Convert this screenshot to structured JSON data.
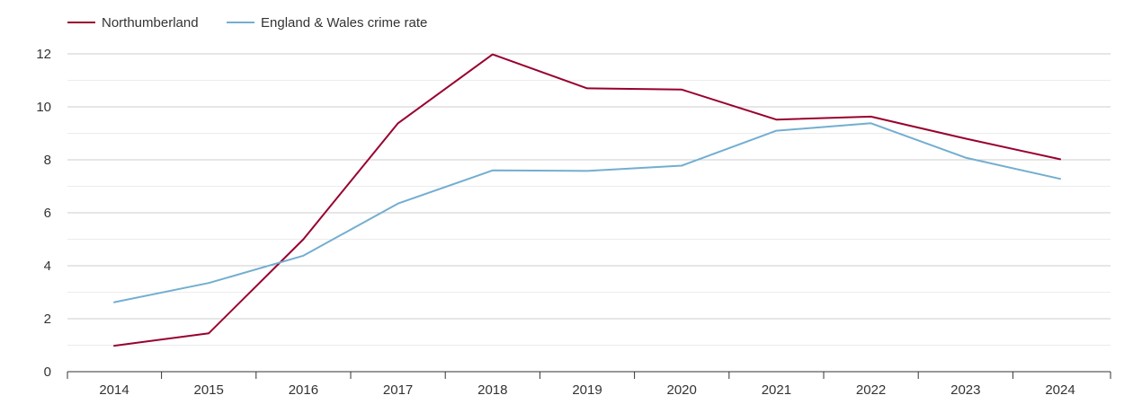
{
  "chart_data": {
    "type": "line",
    "title": "",
    "xlabel": "",
    "ylabel": "",
    "x": [
      "2014",
      "2015",
      "2016",
      "2017",
      "2018",
      "2019",
      "2020",
      "2021",
      "2022",
      "2023",
      "2024"
    ],
    "ylim": [
      0,
      12
    ],
    "y_ticks": [
      0,
      2,
      4,
      6,
      8,
      10,
      12
    ],
    "grid": true,
    "legend_position": "top-left",
    "series": [
      {
        "name": "Northumberland",
        "color": "#99002e",
        "values": [
          0.98,
          1.45,
          5.0,
          9.38,
          11.98,
          10.7,
          10.65,
          9.52,
          9.63,
          8.8,
          8.02
        ]
      },
      {
        "name": "England & Wales crime rate",
        "color": "#73aed0",
        "values": [
          2.62,
          3.35,
          4.38,
          6.35,
          7.6,
          7.58,
          7.78,
          9.1,
          9.38,
          8.08,
          7.28
        ]
      }
    ]
  }
}
